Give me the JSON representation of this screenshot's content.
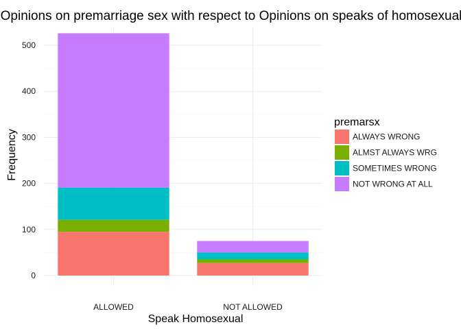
{
  "chart_data": {
    "type": "bar",
    "stacked": true,
    "title": "Opinions on premarriage sex with respect to Opinions on speaks of homosexual",
    "xlabel": "Speak Homosexual",
    "ylabel": "Frequency",
    "categories": [
      "ALLOWED",
      "NOT ALLOWED"
    ],
    "ylim": [
      0,
      540
    ],
    "yticks": [
      0,
      100,
      200,
      300,
      400,
      500
    ],
    "grid": true,
    "legend": {
      "title": "premarsx",
      "position": "right"
    },
    "series": [
      {
        "name": "ALWAYS WRONG",
        "color": "#F8766D",
        "values": [
          95,
          27
        ]
      },
      {
        "name": "ALMST ALWAYS WRG",
        "color": "#7CAE00",
        "values": [
          26,
          8
        ]
      },
      {
        "name": "SOMETIMES WRONG",
        "color": "#00BFC4",
        "values": [
          70,
          15
        ]
      },
      {
        "name": "NOT WRONG AT ALL",
        "color": "#C77CFF",
        "values": [
          335,
          25
        ]
      }
    ]
  }
}
